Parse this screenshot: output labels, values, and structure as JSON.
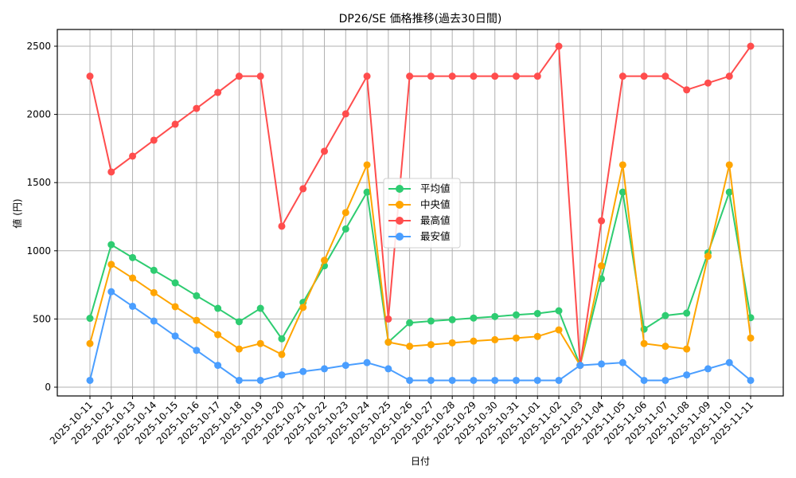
{
  "chart_data": {
    "type": "line",
    "title": "DP26/SE 価格推移(過去30日間)",
    "xlabel": "日付",
    "ylabel": "値 (円)",
    "ylim": [
      -65,
      2620
    ],
    "yticks": [
      0,
      500,
      1000,
      1500,
      2000,
      2500
    ],
    "grid": true,
    "legend_position": "center",
    "categories": [
      "2025-10-11",
      "2025-10-12",
      "2025-10-13",
      "2025-10-14",
      "2025-10-15",
      "2025-10-16",
      "2025-10-17",
      "2025-10-18",
      "2025-10-19",
      "2025-10-20",
      "2025-10-21",
      "2025-10-22",
      "2025-10-23",
      "2025-10-24",
      "2025-10-25",
      "2025-10-26",
      "2025-10-27",
      "2025-10-28",
      "2025-10-29",
      "2025-10-30",
      "2025-10-31",
      "2025-11-01",
      "2025-11-02",
      "2025-11-03",
      "2025-11-04",
      "2025-11-05",
      "2025-11-06",
      "2025-11-07",
      "2025-11-08",
      "2025-11-09",
      "2025-11-10",
      "2025-11-11"
    ],
    "series": [
      {
        "name": "平均値",
        "color": "#2ecc71",
        "values": [
          505,
          1045,
          950,
          857,
          765,
          670,
          578,
          480,
          578,
          355,
          622,
          890,
          1160,
          1430,
          330,
          472,
          485,
          495,
          507,
          518,
          530,
          540,
          560,
          160,
          795,
          1430,
          425,
          525,
          543,
          985,
          1430,
          510
        ]
      },
      {
        "name": "中央値",
        "color": "#ffa500",
        "values": [
          320,
          900,
          800,
          693,
          590,
          490,
          385,
          280,
          320,
          240,
          585,
          930,
          1280,
          1630,
          330,
          300,
          312,
          325,
          338,
          348,
          360,
          372,
          420,
          160,
          890,
          1630,
          320,
          300,
          280,
          960,
          1630,
          360
        ]
      },
      {
        "name": "最高値",
        "color": "#ff4d4d",
        "values": [
          2280,
          1578,
          1694,
          1811,
          1928,
          2044,
          2161,
          2280,
          2280,
          1180,
          1455,
          1730,
          2004,
          2280,
          500,
          2280,
          2280,
          2280,
          2280,
          2280,
          2280,
          2280,
          2500,
          160,
          1220,
          2280,
          2280,
          2280,
          2180,
          2230,
          2280,
          2500
        ]
      },
      {
        "name": "最安値",
        "color": "#4a9eff",
        "values": [
          50,
          700,
          593,
          485,
          375,
          270,
          160,
          50,
          50,
          90,
          115,
          135,
          160,
          180,
          135,
          50,
          50,
          50,
          50,
          50,
          50,
          50,
          50,
          160,
          170,
          180,
          50,
          50,
          90,
          135,
          180,
          50
        ]
      }
    ]
  },
  "legend": {
    "items": [
      {
        "label": "平均値",
        "color": "#2ecc71"
      },
      {
        "label": "中央値",
        "color": "#ffa500"
      },
      {
        "label": "最高値",
        "color": "#ff4d4d"
      },
      {
        "label": "最安値",
        "color": "#4a9eff"
      }
    ]
  }
}
